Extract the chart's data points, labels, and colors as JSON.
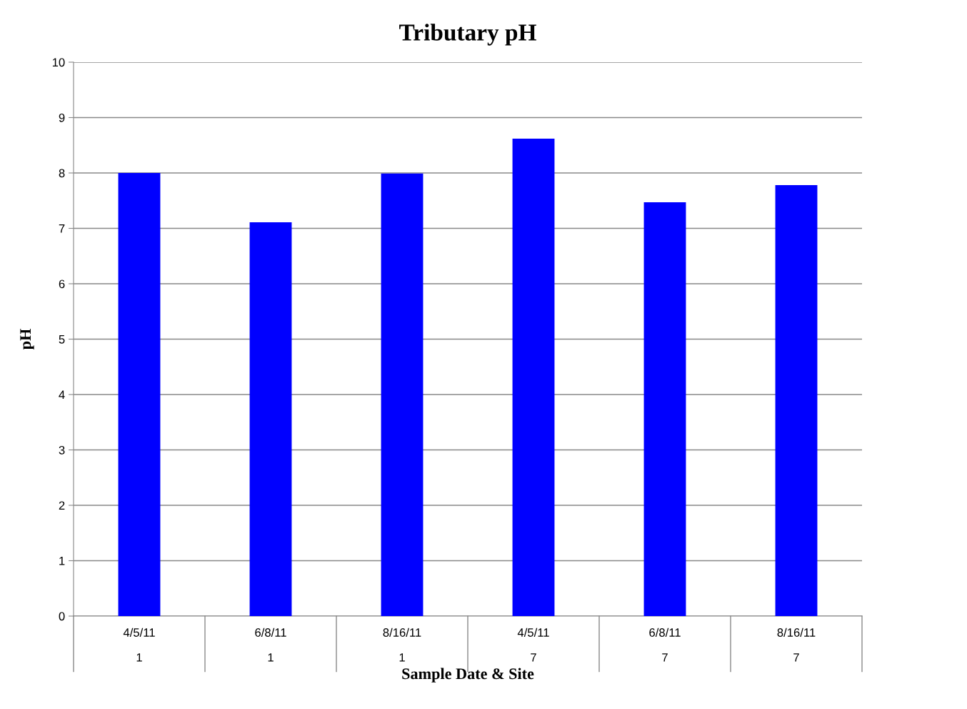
{
  "chart_data": {
    "type": "bar",
    "title": "Tributary pH",
    "xlabel": "Sample Date & Site",
    "ylabel": "pH",
    "categories": [
      "4/5/11\n1",
      "6/8/11\n1",
      "8/16/11\n1",
      "4/5/11\n7",
      "6/8/11\n7",
      "8/16/11\n7"
    ],
    "values": [
      8.0,
      7.11,
      7.99,
      8.62,
      7.47,
      7.78
    ],
    "color": "#0000ff",
    "ylim": [
      0,
      10
    ],
    "yticks": [
      0,
      1,
      2,
      3,
      4,
      5,
      6,
      7,
      8,
      9,
      10
    ],
    "grid": "y",
    "legend": false
  }
}
